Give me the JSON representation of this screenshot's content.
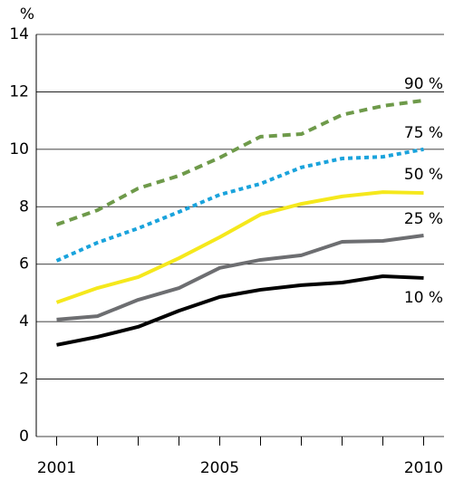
{
  "chart_data": {
    "type": "line",
    "y_label": "%",
    "categories": [
      "2001",
      null,
      null,
      null,
      "2005",
      null,
      null,
      null,
      null,
      "2010"
    ],
    "ylim": [
      0,
      14
    ],
    "yticks": [
      0,
      2,
      4,
      6,
      8,
      10,
      12,
      14
    ],
    "grid": true,
    "series": [
      {
        "name": "90 %",
        "color": "#6e9a4a",
        "style": "dashed",
        "values": [
          7.38,
          7.88,
          8.64,
          9.08,
          9.71,
          10.44,
          10.53,
          11.2,
          11.51,
          11.7
        ]
      },
      {
        "name": "75 %",
        "color": "#1aa3dc",
        "style": "dotted",
        "values": [
          6.12,
          6.75,
          7.25,
          7.82,
          8.42,
          8.8,
          9.37,
          9.68,
          9.74,
          10.0
        ]
      },
      {
        "name": "50 %",
        "color": "#f5e81c",
        "style": "solid",
        "values": [
          4.67,
          5.17,
          5.55,
          6.21,
          6.94,
          7.73,
          8.1,
          8.36,
          8.51,
          8.48
        ]
      },
      {
        "name": "25 %",
        "color": "#6d6e71",
        "style": "solid",
        "values": [
          4.07,
          4.19,
          4.76,
          5.17,
          5.87,
          6.15,
          6.31,
          6.78,
          6.81,
          7.0
        ]
      },
      {
        "name": "10 %",
        "color": "#000000",
        "style": "solid",
        "values": [
          3.19,
          3.47,
          3.82,
          4.38,
          4.86,
          5.11,
          5.27,
          5.36,
          5.58,
          5.52
        ]
      }
    ]
  }
}
